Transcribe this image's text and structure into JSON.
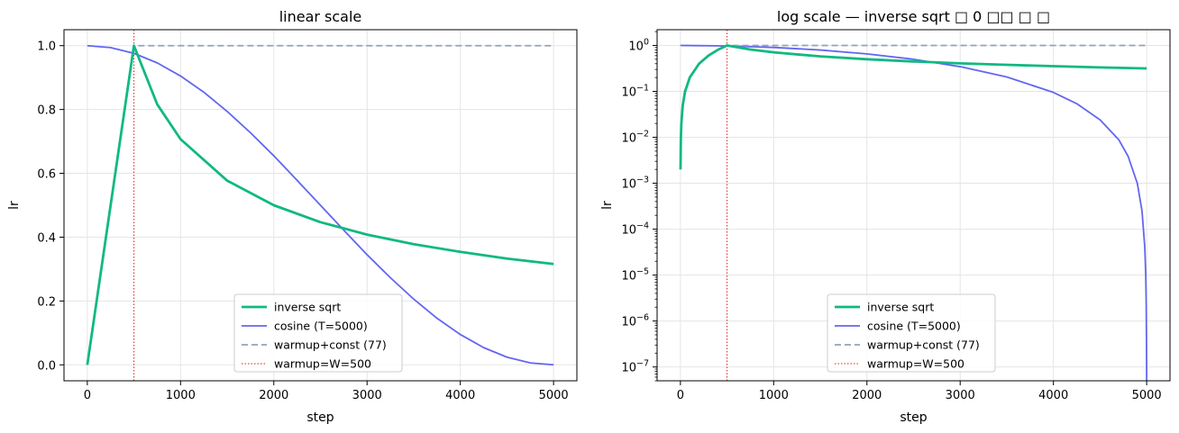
{
  "chart_data": [
    {
      "type": "line",
      "title": "linear scale",
      "xlabel": "step",
      "ylabel": "lr",
      "yscale": "linear",
      "xlim": [
        -250,
        5250
      ],
      "ylim": [
        -0.05,
        1.05
      ],
      "xticks": [
        0,
        1000,
        2000,
        3000,
        4000,
        5000
      ],
      "xtick_labels": [
        "0",
        "1000",
        "2000",
        "3000",
        "4000",
        "5000"
      ],
      "yticks": [
        0.0,
        0.2,
        0.4,
        0.6,
        0.8,
        1.0
      ],
      "ytick_labels": [
        "0.0",
        "0.2",
        "0.4",
        "0.6",
        "0.8",
        "1.0"
      ],
      "grid": true,
      "legend_position": "lower-center",
      "series": [
        {
          "name": "inverse sqrt",
          "color": "#10b981",
          "style": "solid",
          "x": [
            0,
            100,
            200,
            300,
            400,
            500,
            750,
            1000,
            1500,
            2000,
            2500,
            3000,
            3500,
            4000,
            4500,
            5000
          ],
          "values": [
            0.0,
            0.2,
            0.4,
            0.6,
            0.8,
            1.0,
            0.816,
            0.707,
            0.577,
            0.5,
            0.447,
            0.408,
            0.378,
            0.354,
            0.333,
            0.316
          ]
        },
        {
          "name": "cosine (T=5000)",
          "color": "#6366f1",
          "style": "solid",
          "x": [
            0,
            250,
            500,
            750,
            1000,
            1250,
            1500,
            1750,
            2000,
            2250,
            2500,
            2750,
            3000,
            3250,
            3500,
            3750,
            4000,
            4250,
            4500,
            4750,
            5000
          ],
          "values": [
            1.0,
            0.994,
            0.976,
            0.946,
            0.905,
            0.854,
            0.794,
            0.727,
            0.655,
            0.578,
            0.5,
            0.422,
            0.345,
            0.273,
            0.206,
            0.146,
            0.095,
            0.054,
            0.024,
            0.006,
            0.0
          ]
        },
        {
          "name": "warmup+const (77)",
          "color": "#94a3b8",
          "style": "dashed",
          "x": [
            0,
            100,
            200,
            300,
            400,
            500,
            5000
          ],
          "values": [
            0.0,
            0.2,
            0.4,
            0.6,
            0.8,
            1.0,
            1.0
          ]
        }
      ],
      "reference_lines": [
        {
          "name": "warmup=W=500",
          "color": "#e11d1d",
          "style": "dotted",
          "x": 500
        }
      ]
    },
    {
      "type": "line",
      "title": "log scale — inverse sqrt □ 0 □□ □ □",
      "xlabel": "step",
      "ylabel": "lr",
      "yscale": "log",
      "xlim": [
        -250,
        5250
      ],
      "ylim": [
        5e-08,
        2.2
      ],
      "xticks": [
        0,
        1000,
        2000,
        3000,
        4000,
        5000
      ],
      "xtick_labels": [
        "0",
        "1000",
        "2000",
        "3000",
        "4000",
        "5000"
      ],
      "yticks": [
        1e-07,
        1e-06,
        1e-05,
        0.0001,
        0.001,
        0.01,
        0.1,
        1
      ],
      "ytick_labels": [
        {
          "base": "10",
          "exp": "−7"
        },
        {
          "base": "10",
          "exp": "−6"
        },
        {
          "base": "10",
          "exp": "−5"
        },
        {
          "base": "10",
          "exp": "−4"
        },
        {
          "base": "10",
          "exp": "−3"
        },
        {
          "base": "10",
          "exp": "−2"
        },
        {
          "base": "10",
          "exp": "−1"
        },
        {
          "base": "10",
          "exp": "0"
        }
      ],
      "grid": true,
      "legend_position": "lower-center",
      "series": [
        {
          "name": "inverse sqrt",
          "color": "#10b981",
          "style": "solid",
          "x": [
            1,
            5,
            10,
            25,
            50,
            100,
            200,
            300,
            400,
            500,
            750,
            1000,
            1500,
            2000,
            2500,
            3000,
            3500,
            4000,
            4500,
            5000
          ],
          "values": [
            0.002,
            0.01,
            0.02,
            0.05,
            0.1,
            0.2,
            0.4,
            0.6,
            0.8,
            1.0,
            0.816,
            0.707,
            0.577,
            0.5,
            0.447,
            0.408,
            0.378,
            0.354,
            0.333,
            0.316
          ]
        },
        {
          "name": "cosine (T=5000)",
          "color": "#6366f1",
          "style": "solid",
          "x": [
            0,
            500,
            1000,
            1500,
            2000,
            2500,
            3000,
            3500,
            4000,
            4250,
            4500,
            4700,
            4800,
            4900,
            4950,
            4980,
            4990,
            4995,
            4998,
            5000
          ],
          "values": [
            1.0,
            0.976,
            0.905,
            0.794,
            0.655,
            0.5,
            0.345,
            0.206,
            0.095,
            0.054,
            0.024,
            0.0089,
            0.0039,
            0.00099,
            0.00025,
            4e-05,
            1e-05,
            2.5e-06,
            4e-07,
            5e-08
          ]
        },
        {
          "name": "warmup+const (77)",
          "color": "#94a3b8",
          "style": "dashed",
          "x": [
            1,
            5,
            10,
            25,
            50,
            100,
            200,
            300,
            400,
            500,
            5000
          ],
          "values": [
            0.002,
            0.01,
            0.02,
            0.05,
            0.1,
            0.2,
            0.4,
            0.6,
            0.8,
            1.0,
            1.0
          ]
        }
      ],
      "reference_lines": [
        {
          "name": "warmup=W=500",
          "color": "#e11d1d",
          "style": "dotted",
          "x": 500
        }
      ]
    }
  ]
}
